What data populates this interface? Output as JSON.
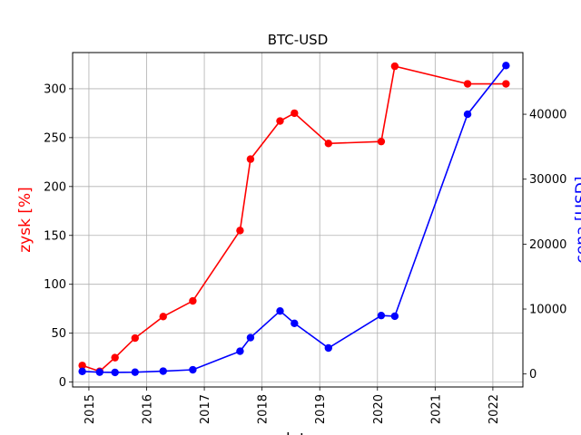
{
  "chart_data": {
    "type": "line",
    "title": "BTC-USD",
    "xlabel": "data",
    "x_tick_labels": [
      "2015",
      "2016",
      "2017",
      "2018",
      "2019",
      "2020",
      "2021",
      "2022"
    ],
    "x_tick_years": [
      2015,
      2016,
      2017,
      2018,
      2019,
      2020,
      2021,
      2022
    ],
    "xlim": [
      "2014-09-20",
      "2022-07-10"
    ],
    "left_axis": {
      "label": "zysk [%]",
      "color": "#ff0000",
      "ylim": [
        -5,
        337
      ],
      "ticks": [
        0,
        50,
        100,
        150,
        200,
        250,
        300
      ]
    },
    "right_axis": {
      "label": "cena [USD]",
      "color": "#0000ff",
      "ylim": [
        -2000,
        49500
      ],
      "ticks": [
        0,
        10000,
        20000,
        30000,
        40000
      ]
    },
    "grid": true,
    "series": [
      {
        "name": "zysk [%]",
        "axis": "left",
        "color": "#ff0000",
        "points": [
          {
            "x": "2014-11-20",
            "y": 17
          },
          {
            "x": "2015-03-10",
            "y": 11
          },
          {
            "x": "2015-06-15",
            "y": 25
          },
          {
            "x": "2015-10-20",
            "y": 45
          },
          {
            "x": "2016-04-15",
            "y": 67
          },
          {
            "x": "2016-10-20",
            "y": 83
          },
          {
            "x": "2017-08-15",
            "y": 155
          },
          {
            "x": "2017-10-20",
            "y": 228
          },
          {
            "x": "2018-04-25",
            "y": 267
          },
          {
            "x": "2018-07-25",
            "y": 275
          },
          {
            "x": "2019-02-25",
            "y": 244
          },
          {
            "x": "2020-01-25",
            "y": 246
          },
          {
            "x": "2020-04-20",
            "y": 323
          },
          {
            "x": "2021-07-25",
            "y": 305
          },
          {
            "x": "2022-03-25",
            "y": 305
          }
        ]
      },
      {
        "name": "cena [USD]",
        "axis": "right",
        "color": "#0000ff",
        "points": [
          {
            "x": "2014-11-20",
            "y": 400
          },
          {
            "x": "2015-03-10",
            "y": 280
          },
          {
            "x": "2015-06-15",
            "y": 240
          },
          {
            "x": "2015-10-20",
            "y": 280
          },
          {
            "x": "2016-04-15",
            "y": 440
          },
          {
            "x": "2016-10-20",
            "y": 650
          },
          {
            "x": "2017-08-15",
            "y": 3500
          },
          {
            "x": "2017-10-20",
            "y": 5600
          },
          {
            "x": "2018-04-25",
            "y": 9700
          },
          {
            "x": "2018-07-25",
            "y": 7800
          },
          {
            "x": "2019-02-25",
            "y": 4000
          },
          {
            "x": "2020-01-25",
            "y": 9000
          },
          {
            "x": "2020-04-20",
            "y": 8900
          },
          {
            "x": "2021-07-25",
            "y": 40000
          },
          {
            "x": "2022-03-25",
            "y": 47500
          }
        ]
      }
    ]
  }
}
